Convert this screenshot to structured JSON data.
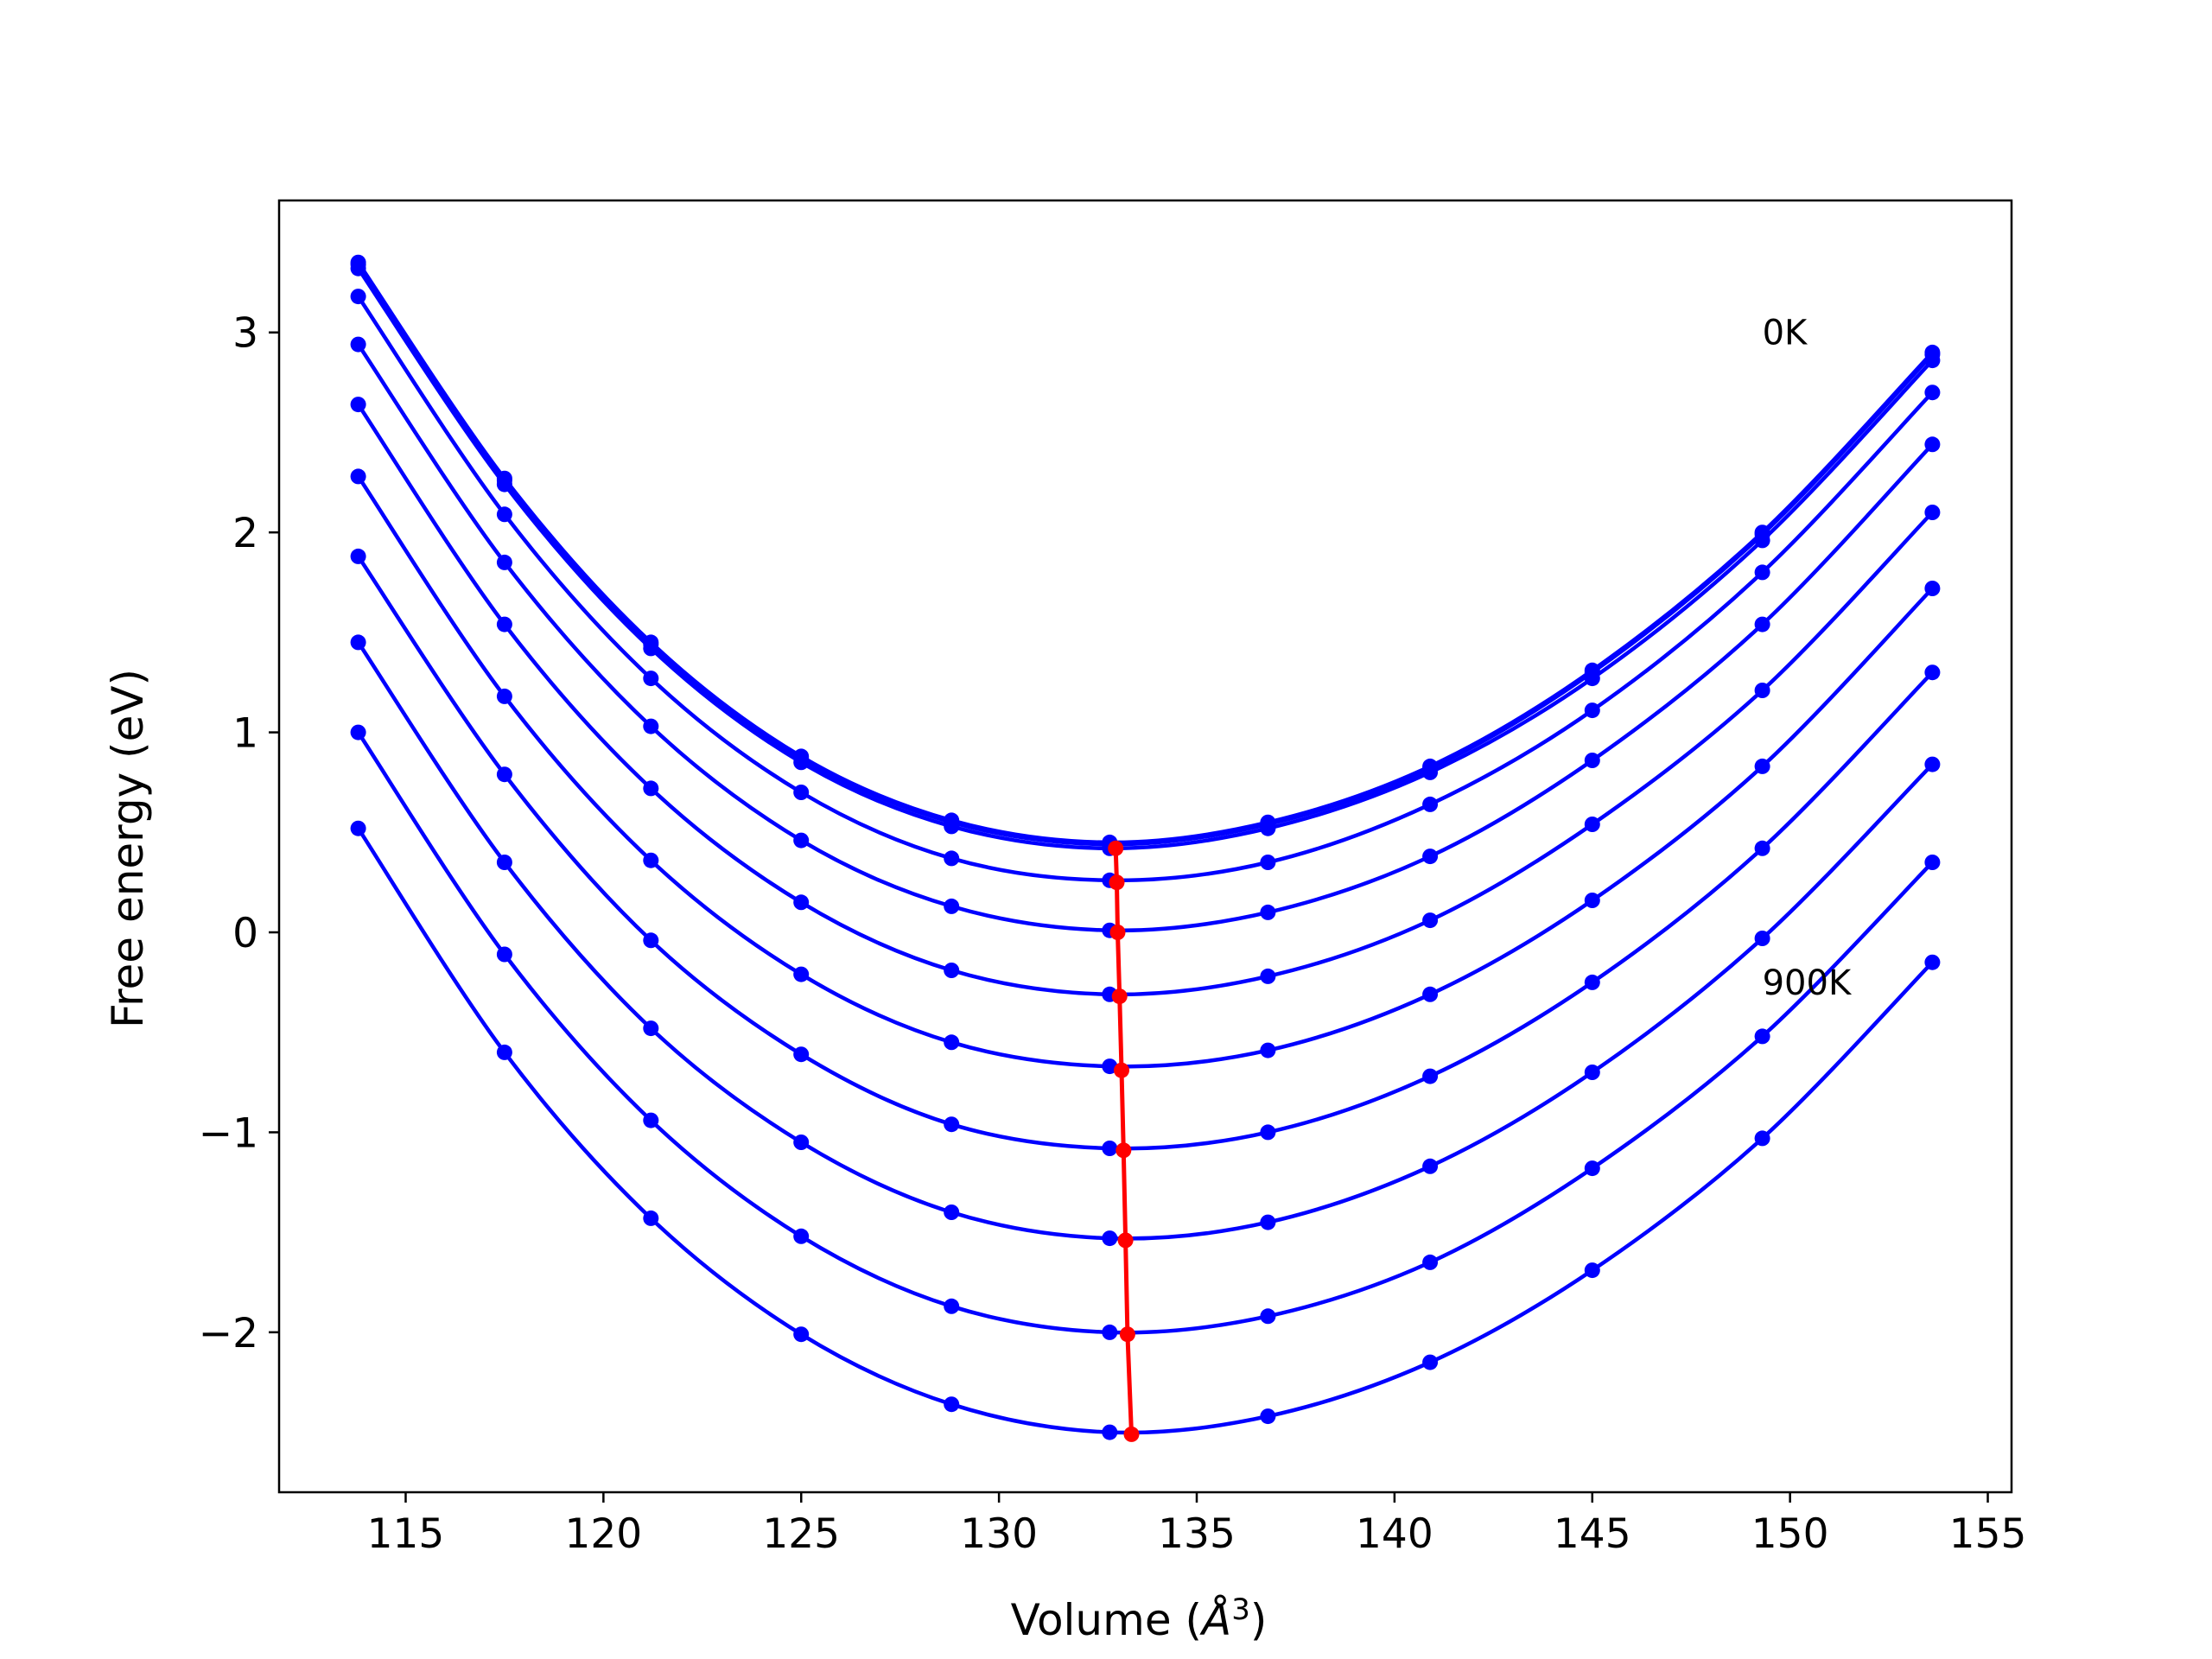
{
  "chart_data": {
    "type": "line",
    "xlabel_prefix": "Volume (",
    "xlabel_unit": "Å",
    "xlabel_exp": "3",
    "xlabel_suffix": ")",
    "ylabel": "Free energy (eV)",
    "xlim": [
      111.8,
      155.6
    ],
    "ylim": [
      -2.8,
      3.66
    ],
    "x_ticks": [
      115,
      120,
      125,
      130,
      135,
      140,
      145,
      150,
      155
    ],
    "x_tick_labels": [
      "115",
      "120",
      "125",
      "130",
      "135",
      "140",
      "145",
      "150",
      "155"
    ],
    "y_ticks": [
      -2,
      -1,
      0,
      1,
      2,
      3
    ],
    "y_tick_labels": [
      "−2",
      "−1",
      "0",
      "1",
      "2",
      "3"
    ],
    "annotations": [
      {
        "text": "0K",
        "x": 149.3,
        "y": 3.0
      },
      {
        "text": "900K",
        "x": 149.3,
        "y": -0.25
      }
    ],
    "x": [
      113.8,
      117.5,
      121.2,
      125.0,
      128.8,
      132.8,
      136.8,
      140.9,
      145.0,
      149.3,
      153.6
    ],
    "series": [
      {
        "label": "0K",
        "values": [
          3.35,
          2.27,
          1.45,
          0.88,
          0.56,
          0.45,
          0.55,
          0.83,
          1.31,
          2.0,
          2.9
        ]
      },
      {
        "values": [
          3.34,
          2.26,
          1.44,
          0.87,
          0.55,
          0.44,
          0.54,
          0.82,
          1.3,
          1.99,
          2.89
        ]
      },
      {
        "values": [
          3.32,
          2.24,
          1.42,
          0.85,
          0.53,
          0.42,
          0.52,
          0.8,
          1.27,
          1.96,
          2.86
        ]
      },
      {
        "values": [
          3.18,
          2.09,
          1.27,
          0.7,
          0.37,
          0.26,
          0.35,
          0.64,
          1.11,
          1.8,
          2.7
        ]
      },
      {
        "values": [
          2.94,
          1.85,
          1.03,
          0.46,
          0.13,
          0.01,
          0.1,
          0.38,
          0.86,
          1.54,
          2.44
        ]
      },
      {
        "values": [
          2.64,
          1.54,
          0.72,
          0.15,
          -0.19,
          -0.31,
          -0.22,
          0.06,
          0.54,
          1.21,
          2.1
        ]
      },
      {
        "values": [
          2.28,
          1.18,
          0.36,
          -0.21,
          -0.55,
          -0.67,
          -0.59,
          -0.31,
          0.16,
          0.83,
          1.72
        ]
      },
      {
        "values": [
          1.88,
          0.79,
          -0.04,
          -0.61,
          -0.96,
          -1.08,
          -1.0,
          -0.72,
          -0.25,
          0.42,
          1.3
        ]
      },
      {
        "values": [
          1.45,
          0.35,
          -0.48,
          -1.05,
          -1.4,
          -1.53,
          -1.45,
          -1.17,
          -0.7,
          -0.03,
          0.84
        ]
      },
      {
        "values": [
          1.0,
          -0.11,
          -0.94,
          -1.52,
          -1.87,
          -2.0,
          -1.92,
          -1.65,
          -1.18,
          -0.52,
          0.35
        ]
      },
      {
        "label": "900K",
        "values": [
          0.52,
          -0.6,
          -1.43,
          -2.01,
          -2.36,
          -2.5,
          -2.42,
          -2.15,
          -1.69,
          -1.03,
          -0.15
        ]
      }
    ],
    "minima": {
      "x": [
        132.95,
        132.98,
        133.0,
        133.05,
        133.1,
        133.15,
        133.2,
        133.25,
        133.35
      ],
      "y": [
        0.42,
        0.25,
        0.0,
        -0.32,
        -0.69,
        -1.09,
        -1.54,
        -2.01,
        -2.51
      ]
    },
    "colors": {
      "curves": "#0000ff",
      "minima": "#ff0000",
      "frame": "#000000"
    }
  }
}
